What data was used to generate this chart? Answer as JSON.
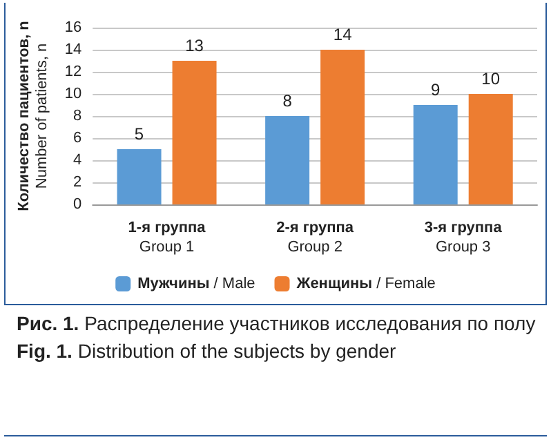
{
  "chart_data": {
    "type": "bar",
    "categories": [
      "1-я группа\nGroup 1",
      "2-я группа\nGroup 2",
      "3-я группа\nGroup 3"
    ],
    "series": [
      {
        "name": "Мужчины / Male",
        "color": "#5b9bd5",
        "values": [
          5,
          8,
          9
        ]
      },
      {
        "name": "Женщины / Female",
        "color": "#ed7d31",
        "values": [
          13,
          14,
          10
        ]
      }
    ],
    "ylabel": "Количество пациентов, n\nNumber of patients, n",
    "ylim": [
      0,
      16
    ],
    "yticks": [
      0,
      2,
      4,
      6,
      8,
      10,
      12,
      14,
      16
    ],
    "grid": "y",
    "legend": "bottom",
    "data_labels": true,
    "annotations": [
      "Рис. 1. Распределение участников исследования по полу",
      "Fig. 1. Distribution of the subjects by gender"
    ]
  }
}
